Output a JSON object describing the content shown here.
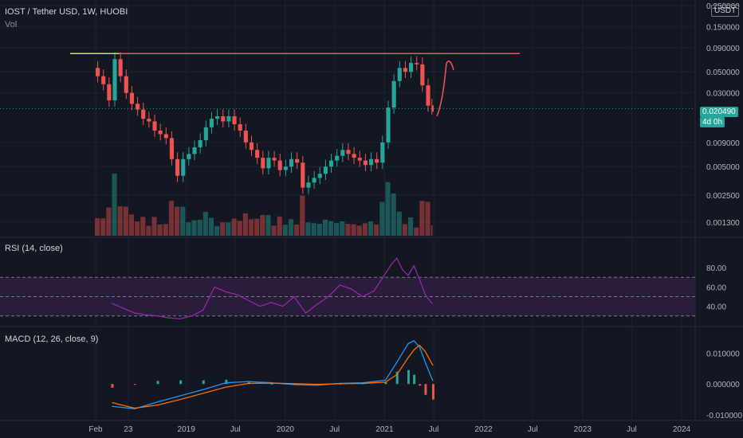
{
  "header": {
    "title": "IOST / Tether USD, 1W, HUOBI",
    "vol_label": "Vol",
    "currency_badge": "USDT",
    "price_badge": "0.020490",
    "countdown_badge": "4d 0h",
    "rsi_label": "RSI (14, close)",
    "macd_label": "MACD (12, 26, close, 9)"
  },
  "colors": {
    "background": "#131722",
    "up": "#26a69a",
    "down": "#ef5350",
    "resistance": "#f7525f",
    "resistance_start": "#c8e646",
    "rsi_line": "#9c27b0",
    "rsi_band": "#2a1d3b",
    "macd_line": "#2196f3",
    "signal_line": "#ff6d00",
    "price_badge": "#26a69a"
  },
  "chart_data": [
    {
      "type": "candlestick",
      "name": "price",
      "y_scale": "log",
      "y_ticks": [
        "0.250000",
        "0.150000",
        "0.090000",
        "0.050000",
        "0.030000",
        "0.020490",
        "0.009000",
        "0.005000",
        "0.002500",
        "0.001300"
      ],
      "x_ticks": [
        "Feb",
        "23",
        "2019",
        "Jul",
        "2020",
        "Jul",
        "2021",
        "Jul",
        "2022",
        "Jul",
        "2023",
        "Jul",
        "2024"
      ],
      "annotations": {
        "resistance": 0.078,
        "current": 0.02049
      },
      "series": [
        {
          "date": "2018-01-29",
          "close": 0.055
        },
        {
          "date": "2018-02-19",
          "close": 0.045
        },
        {
          "date": "2018-03-12",
          "close": 0.037
        },
        {
          "date": "2018-04-02",
          "close": 0.025
        },
        {
          "date": "2018-04-23",
          "close": 0.068
        },
        {
          "date": "2018-05-14",
          "close": 0.045
        },
        {
          "date": "2018-06-04",
          "close": 0.03
        },
        {
          "date": "2018-06-25",
          "close": 0.023
        },
        {
          "date": "2018-07-16",
          "close": 0.02
        },
        {
          "date": "2018-08-06",
          "close": 0.016
        },
        {
          "date": "2018-08-27",
          "close": 0.015
        },
        {
          "date": "2018-09-17",
          "close": 0.012
        },
        {
          "date": "2018-10-08",
          "close": 0.011
        },
        {
          "date": "2018-10-29",
          "close": 0.01
        },
        {
          "date": "2018-11-19",
          "close": 0.006
        },
        {
          "date": "2018-12-10",
          "close": 0.004
        },
        {
          "date": "2018-12-31",
          "close": 0.006
        },
        {
          "date": "2019-01-21",
          "close": 0.0068
        },
        {
          "date": "2019-02-11",
          "close": 0.008
        },
        {
          "date": "2019-03-04",
          "close": 0.0095
        },
        {
          "date": "2019-03-25",
          "close": 0.013
        },
        {
          "date": "2019-04-15",
          "close": 0.016
        },
        {
          "date": "2019-05-06",
          "close": 0.017
        },
        {
          "date": "2019-05-27",
          "close": 0.015
        },
        {
          "date": "2019-06-17",
          "close": 0.017
        },
        {
          "date": "2019-07-08",
          "close": 0.014
        },
        {
          "date": "2019-07-29",
          "close": 0.012
        },
        {
          "date": "2019-08-19",
          "close": 0.009
        },
        {
          "date": "2019-09-09",
          "close": 0.0075
        },
        {
          "date": "2019-09-30",
          "close": 0.0062
        },
        {
          "date": "2019-10-21",
          "close": 0.0048
        },
        {
          "date": "2019-11-11",
          "close": 0.0062
        },
        {
          "date": "2019-12-02",
          "close": 0.0058
        },
        {
          "date": "2019-12-23",
          "close": 0.0046
        },
        {
          "date": "2020-01-13",
          "close": 0.005
        },
        {
          "date": "2020-02-03",
          "close": 0.006
        },
        {
          "date": "2020-02-24",
          "close": 0.0055
        },
        {
          "date": "2020-03-16",
          "close": 0.003
        },
        {
          "date": "2020-04-06",
          "close": 0.0034
        },
        {
          "date": "2020-04-27",
          "close": 0.0038
        },
        {
          "date": "2020-05-18",
          "close": 0.0042
        },
        {
          "date": "2020-06-08",
          "close": 0.005
        },
        {
          "date": "2020-06-29",
          "close": 0.0058
        },
        {
          "date": "2020-07-20",
          "close": 0.0065
        },
        {
          "date": "2020-08-10",
          "close": 0.0075
        },
        {
          "date": "2020-08-31",
          "close": 0.0068
        },
        {
          "date": "2020-09-21",
          "close": 0.0062
        },
        {
          "date": "2020-10-12",
          "close": 0.0058
        },
        {
          "date": "2020-11-02",
          "close": 0.0052
        },
        {
          "date": "2020-11-23",
          "close": 0.006
        },
        {
          "date": "2020-12-14",
          "close": 0.0055
        },
        {
          "date": "2021-01-04",
          "close": 0.009
        },
        {
          "date": "2021-01-25",
          "close": 0.021
        },
        {
          "date": "2021-02-15",
          "close": 0.04
        },
        {
          "date": "2021-03-08",
          "close": 0.055
        },
        {
          "date": "2021-03-29",
          "close": 0.05
        },
        {
          "date": "2021-04-19",
          "close": 0.062
        },
        {
          "date": "2021-05-10",
          "close": 0.06
        },
        {
          "date": "2021-05-31",
          "close": 0.036
        },
        {
          "date": "2021-06-21",
          "close": 0.022
        },
        {
          "date": "2021-06-28",
          "close": 0.02049
        }
      ]
    },
    {
      "type": "line",
      "name": "rsi",
      "y_ticks": [
        "80.00",
        "60.00",
        "40.00"
      ],
      "bands": [
        30,
        50,
        70
      ],
      "series": [
        {
          "date": "2018-04-02",
          "value": 43
        },
        {
          "date": "2018-05-14",
          "value": 38
        },
        {
          "date": "2018-06-25",
          "value": 33
        },
        {
          "date": "2018-08-06",
          "value": 31
        },
        {
          "date": "2018-09-17",
          "value": 30
        },
        {
          "date": "2018-10-29",
          "value": 28
        },
        {
          "date": "2018-12-10",
          "value": 27
        },
        {
          "date": "2019-01-21",
          "value": 30
        },
        {
          "date": "2019-03-04",
          "value": 36
        },
        {
          "date": "2019-04-15",
          "value": 60
        },
        {
          "date": "2019-05-27",
          "value": 55
        },
        {
          "date": "2019-07-08",
          "value": 52
        },
        {
          "date": "2019-08-19",
          "value": 46
        },
        {
          "date": "2019-09-30",
          "value": 40
        },
        {
          "date": "2019-11-11",
          "value": 44
        },
        {
          "date": "2019-12-23",
          "value": 40
        },
        {
          "date": "2020-02-03",
          "value": 50
        },
        {
          "date": "2020-03-16",
          "value": 33
        },
        {
          "date": "2020-04-27",
          "value": 42
        },
        {
          "date": "2020-06-08",
          "value": 50
        },
        {
          "date": "2020-07-20",
          "value": 62
        },
        {
          "date": "2020-08-31",
          "value": 58
        },
        {
          "date": "2020-10-12",
          "value": 50
        },
        {
          "date": "2020-11-23",
          "value": 56
        },
        {
          "date": "2021-01-04",
          "value": 74
        },
        {
          "date": "2021-01-25",
          "value": 83
        },
        {
          "date": "2021-02-15",
          "value": 90
        },
        {
          "date": "2021-03-08",
          "value": 78
        },
        {
          "date": "2021-03-29",
          "value": 72
        },
        {
          "date": "2021-04-19",
          "value": 82
        },
        {
          "date": "2021-05-10",
          "value": 68
        },
        {
          "date": "2021-05-31",
          "value": 52
        },
        {
          "date": "2021-06-21",
          "value": 44
        },
        {
          "date": "2021-06-28",
          "value": 43
        }
      ]
    },
    {
      "type": "line",
      "name": "macd",
      "y_ticks": [
        "0.010000",
        "0.000000",
        "-0.010000"
      ],
      "macd": [
        {
          "date": "2018-04-02",
          "value": -0.0072
        },
        {
          "date": "2018-06-25",
          "value": -0.008
        },
        {
          "date": "2018-09-17",
          "value": -0.0058
        },
        {
          "date": "2018-12-10",
          "value": -0.0038
        },
        {
          "date": "2019-03-04",
          "value": -0.0018
        },
        {
          "date": "2019-05-27",
          "value": 0.0004
        },
        {
          "date": "2019-08-19",
          "value": 0.0008
        },
        {
          "date": "2019-11-11",
          "value": 0.0004
        },
        {
          "date": "2020-02-03",
          "value": -0.0002
        },
        {
          "date": "2020-04-27",
          "value": -0.0004
        },
        {
          "date": "2020-07-20",
          "value": 0.0002
        },
        {
          "date": "2020-10-12",
          "value": 0.0004
        },
        {
          "date": "2021-01-04",
          "value": 0.0012
        },
        {
          "date": "2021-02-15",
          "value": 0.007
        },
        {
          "date": "2021-03-29",
          "value": 0.013
        },
        {
          "date": "2021-04-19",
          "value": 0.014
        },
        {
          "date": "2021-05-10",
          "value": 0.012
        },
        {
          "date": "2021-05-31",
          "value": 0.007
        },
        {
          "date": "2021-06-28",
          "value": 0.001
        }
      ],
      "signal": [
        {
          "date": "2018-04-02",
          "value": -0.006
        },
        {
          "date": "2018-06-25",
          "value": -0.0078
        },
        {
          "date": "2018-09-17",
          "value": -0.0068
        },
        {
          "date": "2018-12-10",
          "value": -0.005
        },
        {
          "date": "2019-03-04",
          "value": -0.003
        },
        {
          "date": "2019-05-27",
          "value": -0.001
        },
        {
          "date": "2019-08-19",
          "value": 0.0002
        },
        {
          "date": "2019-11-11",
          "value": 0.0003
        },
        {
          "date": "2020-02-03",
          "value": 0.0001
        },
        {
          "date": "2020-04-27",
          "value": -0.0001
        },
        {
          "date": "2020-07-20",
          "value": 0.0001
        },
        {
          "date": "2020-10-12",
          "value": 0.0002
        },
        {
          "date": "2021-01-04",
          "value": 0.0006
        },
        {
          "date": "2021-02-15",
          "value": 0.003
        },
        {
          "date": "2021-03-29",
          "value": 0.0085
        },
        {
          "date": "2021-04-19",
          "value": 0.011
        },
        {
          "date": "2021-05-10",
          "value": 0.0125
        },
        {
          "date": "2021-05-31",
          "value": 0.0105
        },
        {
          "date": "2021-06-28",
          "value": 0.006
        }
      ]
    }
  ]
}
